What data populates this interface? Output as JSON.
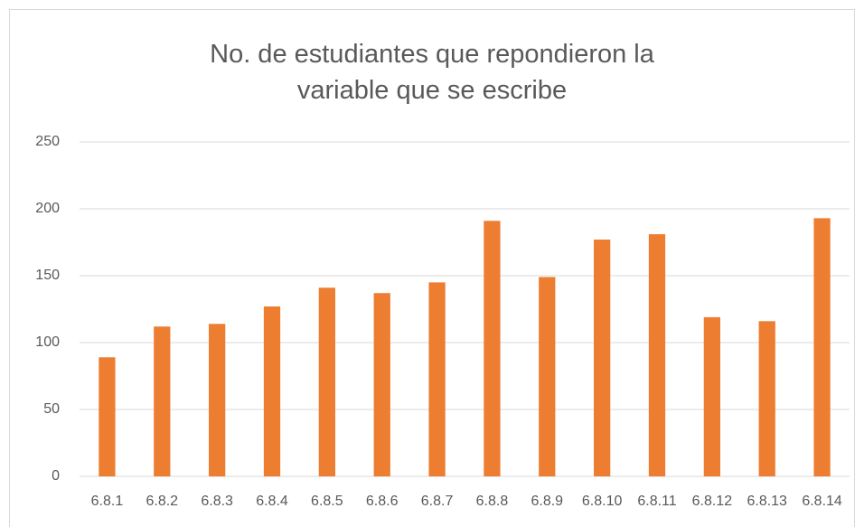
{
  "chart_data": {
    "type": "bar",
    "title": "No. de estudiantes que repondieron la variable que se escribe",
    "categories": [
      "6.8.1",
      "6.8.2",
      "6.8.3",
      "6.8.4",
      "6.8.5",
      "6.8.6",
      "6.8.7",
      "6.8.8",
      "6.8.9",
      "6.8.10",
      "6.8.11",
      "6.8.12",
      "6.8.13",
      "6.8.14"
    ],
    "values": [
      89,
      112,
      114,
      127,
      141,
      137,
      145,
      191,
      149,
      177,
      181,
      119,
      116,
      193
    ],
    "color": "#ed7d31",
    "ylim": [
      0,
      250
    ],
    "yticks": [
      0,
      50,
      100,
      150,
      200,
      250
    ],
    "grid": true
  }
}
